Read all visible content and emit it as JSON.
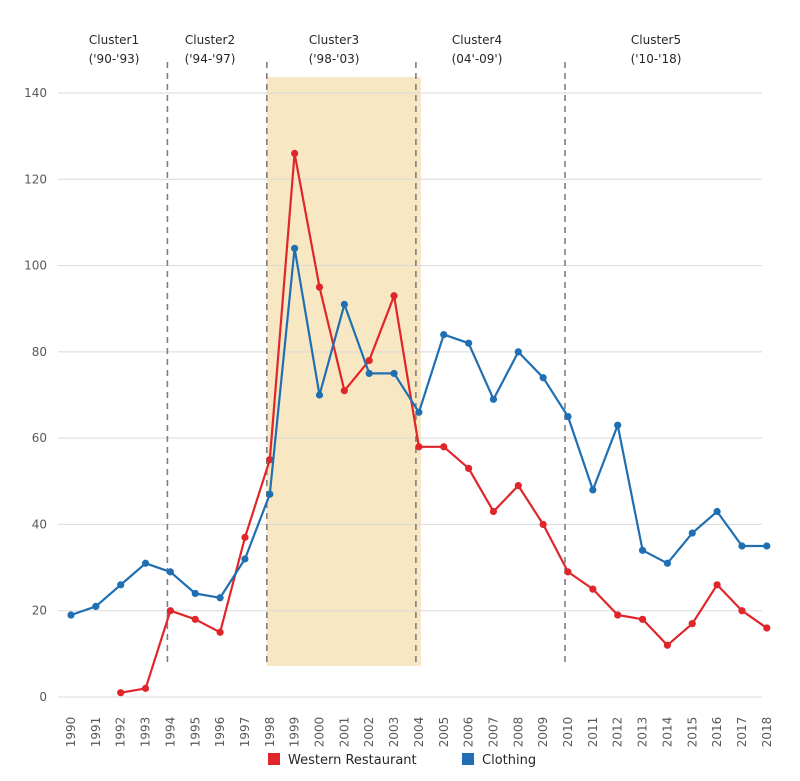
{
  "chart_data": {
    "type": "line",
    "title": "",
    "xlabel": "",
    "ylabel": "",
    "ylim": [
      0,
      140
    ],
    "yticks": [
      0,
      20,
      40,
      60,
      80,
      100,
      120,
      140
    ],
    "categories": [
      "1990",
      "1991",
      "1992",
      "1993",
      "1994",
      "1995",
      "1996",
      "1997",
      "1998",
      "1999",
      "2000",
      "2001",
      "2002",
      "2003",
      "2004",
      "2005",
      "2006",
      "2007",
      "2008",
      "2009",
      "2010",
      "2011",
      "2012",
      "2013",
      "2014",
      "2015",
      "2016",
      "2017",
      "2018"
    ],
    "series": [
      {
        "name": "Western Restaurant",
        "color": "#e0262b",
        "values": [
          null,
          null,
          1,
          2,
          20,
          18,
          15,
          37,
          55,
          126,
          95,
          71,
          78,
          93,
          58,
          58,
          53,
          43,
          49,
          40,
          29,
          25,
          19,
          18,
          12,
          17,
          26,
          20,
          16
        ]
      },
      {
        "name": "Clothing",
        "color": "#1f6fb2",
        "values": [
          19,
          21,
          26,
          31,
          29,
          24,
          23,
          32,
          47,
          104,
          70,
          91,
          75,
          75,
          66,
          84,
          82,
          69,
          80,
          74,
          65,
          48,
          63,
          34,
          31,
          38,
          43,
          35,
          35
        ]
      }
    ],
    "clusters": [
      {
        "name": "Cluster1",
        "range": "('90-'93)",
        "start": "1990",
        "end": "1993"
      },
      {
        "name": "Cluster2",
        "range": "('94-'97)",
        "start": "1994",
        "end": "1997"
      },
      {
        "name": "Cluster3",
        "range": "('98-'03)",
        "start": "1998",
        "end": "2003"
      },
      {
        "name": "Cluster4",
        "range": "(04'-09')",
        "start": "2004",
        "end": "2009"
      },
      {
        "name": "Cluster5",
        "range": "('10-'18)",
        "start": "2010",
        "end": "2018"
      }
    ],
    "highlight": {
      "from": "1998",
      "to": "2004",
      "color": "#f8e7c3"
    },
    "cluster_dividers": [
      "1994",
      "1998",
      "2004",
      "2010"
    ],
    "legend_position": "bottom"
  }
}
